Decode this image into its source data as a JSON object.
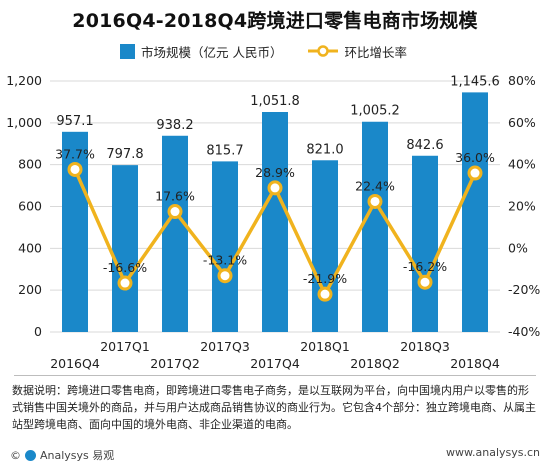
{
  "title": "2016Q4-2018Q4跨境进口零售电商市场规模",
  "colors": {
    "bar": "#1a88c9",
    "line": "#f0b31e",
    "grid": "#d9d9d9"
  },
  "legend": {
    "bar_label": "市场规模（亿元 人民币）",
    "line_label": "环比增长率"
  },
  "chart_data": {
    "type": "bar",
    "categories": [
      "2016Q4",
      "2017Q1",
      "2017Q2",
      "2017Q3",
      "2017Q4",
      "2018Q1",
      "2018Q2",
      "2018Q3",
      "2018Q4"
    ],
    "series": [
      {
        "name": "市场规模（亿元 人民币）",
        "type": "bar",
        "axis": "left",
        "values": [
          957.1,
          797.8,
          938.2,
          815.7,
          1051.8,
          821.0,
          1005.2,
          842.6,
          1145.6
        ],
        "labels": [
          "957.1",
          "797.8",
          "938.2",
          "815.7",
          "1,051.8",
          "821.0",
          "1,005.2",
          "842.6",
          "1,145.6"
        ]
      },
      {
        "name": "环比增长率",
        "type": "line",
        "axis": "right",
        "values": [
          37.7,
          -16.6,
          17.6,
          -13.1,
          28.9,
          -21.9,
          22.4,
          -16.2,
          36.0
        ],
        "labels": [
          "37.7%",
          "-16.6%",
          "17.6%",
          "-13.1%",
          "28.9%",
          "-21.9%",
          "22.4%",
          "-16.2%",
          "36.0%"
        ]
      }
    ],
    "y_left": {
      "ylim": [
        0,
        1200
      ],
      "ticks": [
        "0",
        "200",
        "400",
        "600",
        "800",
        "1,000",
        "1,200"
      ]
    },
    "y_right": {
      "ylim": [
        -40,
        80
      ],
      "ticks": [
        "-40%",
        "-20%",
        "0%",
        "20%",
        "40%",
        "60%",
        "80%"
      ]
    },
    "grid": true,
    "legend_position": "top"
  },
  "note": "数据说明：跨境进口零售电商，即跨境进口零售电子商务，是以互联网为平台，向中国境内用户以零售的形式销售中国关境外的商品，并与用户达成商品销售协议的商业行为。它包含4个部分：独立跨境电商、从属主站型跨境电商、面向中国的境外电商、非企业渠道的电商。",
  "footer": {
    "copyright": "©",
    "brand": "Analysys 易观",
    "site": "www.analysys.cn"
  }
}
